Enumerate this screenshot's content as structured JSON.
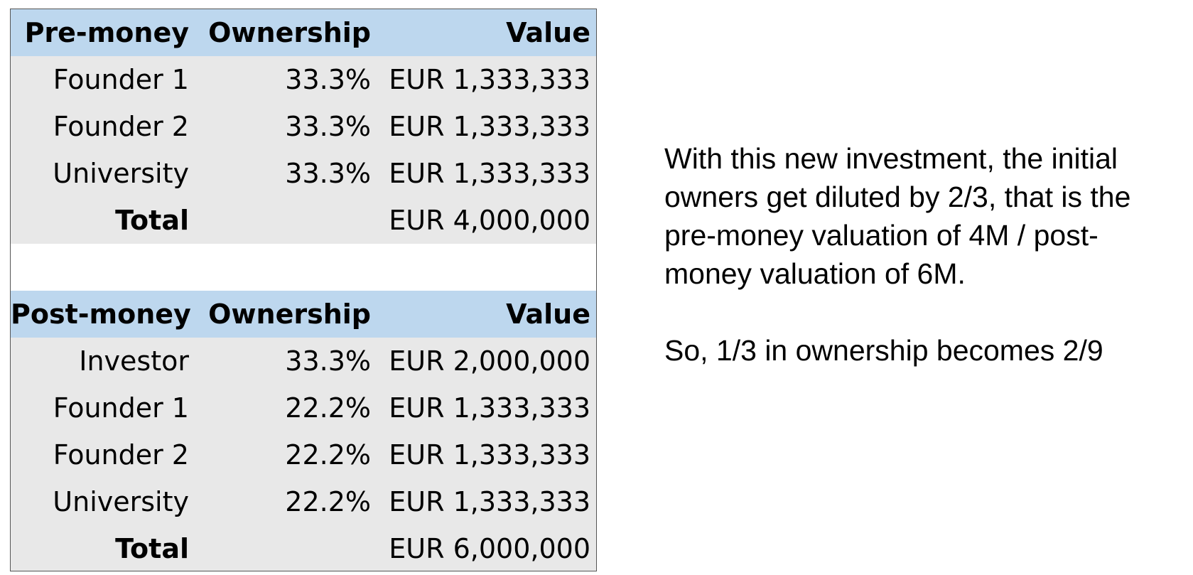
{
  "pre_money": {
    "header": {
      "label": "Pre-money",
      "ownership": "Ownership",
      "value": "Value"
    },
    "rows": [
      {
        "name": "Founder 1",
        "ownership": "33.3%",
        "value": "EUR 1,333,333"
      },
      {
        "name": "Founder 2",
        "ownership": "33.3%",
        "value": "EUR 1,333,333"
      },
      {
        "name": "University",
        "ownership": "33.3%",
        "value": "EUR 1,333,333"
      }
    ],
    "total": {
      "name": "Total",
      "ownership": "",
      "value": "EUR 4,000,000"
    }
  },
  "post_money": {
    "header": {
      "label": "Post-money",
      "ownership": "Ownership",
      "value": "Value"
    },
    "rows": [
      {
        "name": "Investor",
        "ownership": "33.3%",
        "value": "EUR 2,000,000"
      },
      {
        "name": "Founder 1",
        "ownership": "22.2%",
        "value": "EUR 1,333,333"
      },
      {
        "name": "Founder 2",
        "ownership": "22.2%",
        "value": "EUR 1,333,333"
      },
      {
        "name": "University",
        "ownership": "22.2%",
        "value": "EUR 1,333,333"
      }
    ],
    "total": {
      "name": "Total",
      "ownership": "",
      "value": "EUR 6,000,000"
    }
  },
  "explanation": {
    "paragraph_1": "With this new investment, the initial owners get diluted by 2/3, that is the pre-money valuation of 4M / post-money valuation of 6M.",
    "paragraph_2": "So, 1/3 in ownership becomes 2/9"
  },
  "colors": {
    "header_fill": "#bdd7ee",
    "row_fill": "#e8e8e8",
    "border": "#555555"
  }
}
